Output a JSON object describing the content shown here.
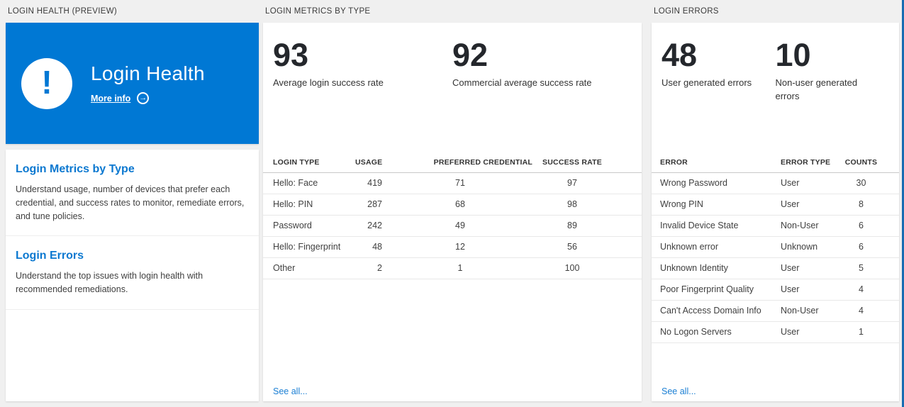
{
  "colors": {
    "accent": "#0078d4",
    "tile_background": "#0078d4",
    "page_background": "#f0f0f0",
    "stat_number": "#24272c",
    "blade_border": "#176cb2"
  },
  "left_column": {
    "section_title": "LOGIN HEALTH (PREVIEW)",
    "health_tile": {
      "title": "Login Health",
      "more_info_label": "More info",
      "icon": "exclamation-warning-icon",
      "arrow_icon": "arrow-right-circle-icon"
    },
    "nav_items": [
      {
        "title": "Login Metrics by Type",
        "description": "Understand usage, number of devices that prefer each credential, and success rates to monitor, remediate errors, and tune policies."
      },
      {
        "title": "Login Errors",
        "description": "Understand the top issues with login health with recommended remediations."
      }
    ]
  },
  "metrics_column": {
    "section_title": "LOGIN METRICS BY TYPE",
    "stats": [
      {
        "value": "93",
        "label": "Average login success rate"
      },
      {
        "value": "92",
        "label": "Commercial average success rate"
      }
    ],
    "table": {
      "columns": [
        "LOGIN TYPE",
        "USAGE",
        "PREFERRED CREDENTIAL",
        "SUCCESS RATE"
      ],
      "rows": [
        [
          "Hello: Face",
          "419",
          "71",
          "97"
        ],
        [
          "Hello: PIN",
          "287",
          "68",
          "98"
        ],
        [
          "Password",
          "242",
          "49",
          "89"
        ],
        [
          "Hello: Fingerprint",
          "48",
          "12",
          "56"
        ],
        [
          "Other",
          "2",
          "1",
          "100"
        ]
      ]
    },
    "see_all_label": "See all..."
  },
  "errors_column": {
    "section_title": "LOGIN ERRORS",
    "stats": [
      {
        "value": "48",
        "label": "User generated errors"
      },
      {
        "value": "10",
        "label": "Non-user generated errors"
      }
    ],
    "table": {
      "columns": [
        "ERROR",
        "ERROR TYPE",
        "COUNTS"
      ],
      "rows": [
        [
          "Wrong Password",
          "User",
          "30"
        ],
        [
          "Wrong PIN",
          "User",
          "8"
        ],
        [
          "Invalid Device State",
          "Non-User",
          "6"
        ],
        [
          "Unknown error",
          "Unknown",
          "6"
        ],
        [
          "Unknown Identity",
          "User",
          "5"
        ],
        [
          "Poor Fingerprint Quality",
          "User",
          "4"
        ],
        [
          "Can't Access Domain Info",
          "Non-User",
          "4"
        ],
        [
          "No Logon Servers",
          "User",
          "1"
        ]
      ]
    },
    "see_all_label": "See all..."
  }
}
